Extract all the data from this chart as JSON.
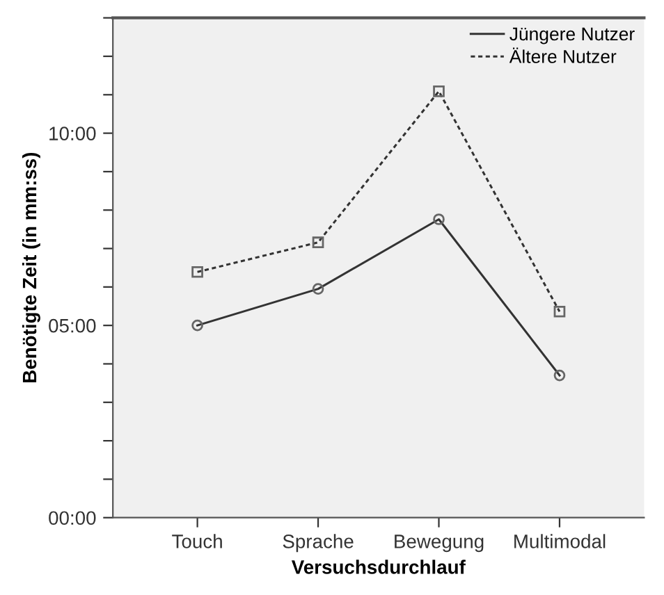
{
  "chart_data": {
    "type": "line",
    "xlabel": "Versuchsdurchlauf",
    "ylabel": "Benötigte Zeit (in mm:ss)",
    "categories": [
      "Touch",
      "Sprache",
      "Bewegung",
      "Multimodal"
    ],
    "series": [
      {
        "name": "Jüngere Nutzer",
        "color": "#333333",
        "marker": "circle",
        "line_style": "solid",
        "values": [
          5.0,
          5.95,
          7.76,
          3.7
        ]
      },
      {
        "name": "Ältere Nutzer",
        "color": "#333333",
        "marker": "square",
        "line_style": "dashed",
        "values": [
          6.39,
          7.16,
          11.09,
          5.36
        ]
      }
    ],
    "ylim": [
      0,
      13
    ],
    "yticks": [
      {
        "value": 0,
        "label": "00:00"
      },
      {
        "value": 1,
        "label": null
      },
      {
        "value": 2,
        "label": null
      },
      {
        "value": 3,
        "label": null
      },
      {
        "value": 4,
        "label": null
      },
      {
        "value": 5,
        "label": "05:00"
      },
      {
        "value": 6,
        "label": null
      },
      {
        "value": 7,
        "label": null
      },
      {
        "value": 8,
        "label": null
      },
      {
        "value": 9,
        "label": null
      },
      {
        "value": 10,
        "label": "10:00"
      },
      {
        "value": 11,
        "label": null
      },
      {
        "value": 12,
        "label": null
      },
      {
        "value": 13,
        "label": null
      }
    ],
    "grid": false,
    "legend": "top right"
  }
}
